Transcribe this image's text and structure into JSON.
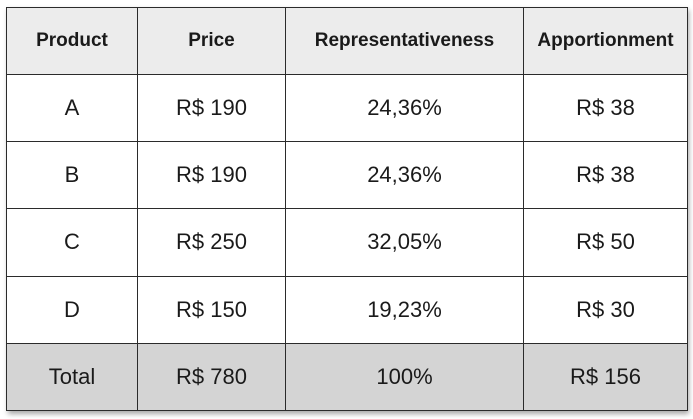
{
  "table": {
    "headers": [
      "Product",
      "Price",
      "Representativeness",
      "Apportionment"
    ],
    "rows": [
      [
        "A",
        "R$ 190",
        "24,36%",
        "R$ 38"
      ],
      [
        "B",
        "R$ 190",
        "24,36%",
        "R$ 38"
      ],
      [
        "C",
        "R$ 250",
        "32,05%",
        "R$ 50"
      ],
      [
        "D",
        "R$ 150",
        "19,23%",
        "R$ 30"
      ]
    ],
    "total": [
      "Total",
      "R$ 780",
      "100%",
      "R$ 156"
    ]
  },
  "colors": {
    "header_bg": "#ececec",
    "total_bg": "#d4d4d4",
    "border": "#2b2b2b"
  }
}
